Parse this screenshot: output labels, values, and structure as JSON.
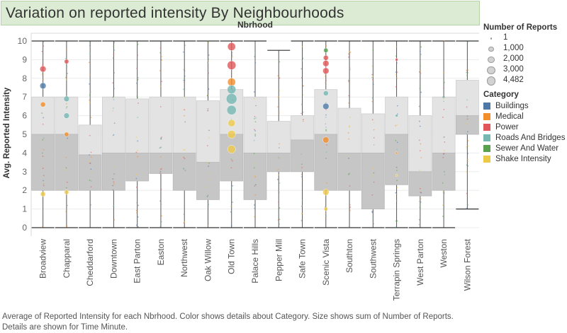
{
  "title": "Variation on reported intensity By Neighbourhoods",
  "caption": {
    "line1": "Average of Reported Intensity  for each Nbrhood.  Color shows details about Category.  Size shows sum of Number of Reports.",
    "line2": "Details are shown for Time Minute."
  },
  "legend": {
    "size_title": "Number of Reports",
    "size_items": [
      {
        "label": "1",
        "value": 1
      },
      {
        "label": "1,000",
        "value": 1000
      },
      {
        "label": "2,000",
        "value": 2000
      },
      {
        "label": "3,000",
        "value": 3000
      },
      {
        "label": "4,482",
        "value": 4482
      }
    ],
    "color_title": "Category",
    "color_items": [
      {
        "label": "Buildings",
        "color": "#4e79a7"
      },
      {
        "label": "Medical",
        "color": "#f28e2b"
      },
      {
        "label": "Power",
        "color": "#e15759"
      },
      {
        "label": "Roads And Bridges",
        "color": "#76b7b2"
      },
      {
        "label": "Sewer And Water",
        "color": "#59a14f"
      },
      {
        "label": "Shake Intensity",
        "color": "#edc948"
      }
    ]
  },
  "chart_data": {
    "type": "boxplot",
    "column_header": "Nbrhood",
    "ylabel": "Avg. Reported Intensity",
    "ylim": [
      0,
      10
    ],
    "yticks": [
      0,
      1,
      2,
      3,
      4,
      5,
      6,
      7,
      8,
      9,
      10
    ],
    "grid": true,
    "categories": [
      "Broadview",
      "Chapparal",
      "Cheddarford",
      "Downtown",
      "East Parton",
      "Easton",
      "Northwest",
      "Oak Willow",
      "Old Town",
      "Palace Hills",
      "Pepper Mill",
      "Safe Town",
      "Scenic Vista",
      "Southton",
      "Southwest",
      "Terrapin Springs",
      "West Parton",
      "Weston",
      "Wilson Forest"
    ],
    "boxes": [
      {
        "min": 0,
        "q1": 2,
        "median": 5,
        "q3": 7,
        "max": 10
      },
      {
        "min": 0,
        "q1": 2,
        "median": 5,
        "q3": 7,
        "max": 10
      },
      {
        "min": 0,
        "q1": 2,
        "median": 3.9,
        "q3": 5.5,
        "max": 10
      },
      {
        "min": 0,
        "q1": 2,
        "median": 4,
        "q3": 7,
        "max": 10
      },
      {
        "min": 0,
        "q1": 2.5,
        "median": 4,
        "q3": 6.9,
        "max": 10
      },
      {
        "min": 0,
        "q1": 2.9,
        "median": 4,
        "q3": 7,
        "max": 10
      },
      {
        "min": 0,
        "q1": 2,
        "median": 4,
        "q3": 7,
        "max": 10
      },
      {
        "min": 0,
        "q1": 1.5,
        "median": 3.5,
        "q3": 6.8,
        "max": 10
      },
      {
        "min": 0,
        "q1": 2.5,
        "median": 5,
        "q3": 7.4,
        "max": 10
      },
      {
        "min": 0,
        "q1": 1.5,
        "median": 4,
        "q3": 7,
        "max": 10
      },
      {
        "min": 0,
        "q1": 3,
        "median": 4,
        "q3": 5.7,
        "max": 9.5
      },
      {
        "min": 0,
        "q1": 3,
        "median": 4.7,
        "q3": 6,
        "max": 10
      },
      {
        "min": 0,
        "q1": 2,
        "median": 5,
        "q3": 7.4,
        "max": 10
      },
      {
        "min": 0,
        "q1": 2,
        "median": 4,
        "q3": 6.4,
        "max": 10
      },
      {
        "min": 0,
        "q1": 1,
        "median": 4,
        "q3": 6.1,
        "max": 10
      },
      {
        "min": 0,
        "q1": 2.3,
        "median": 5,
        "q3": 7,
        "max": 10
      },
      {
        "min": 0,
        "q1": 1.7,
        "median": 3,
        "q3": 6,
        "max": 10
      },
      {
        "min": 0,
        "q1": 2,
        "median": 4,
        "q3": 7,
        "max": 10
      },
      {
        "min": 1,
        "q1": 5,
        "median": 6,
        "q3": 7.9,
        "max": 10
      }
    ],
    "highlight_points": [
      {
        "nbrhood": "Broadview",
        "y": 8.5,
        "category": "Power",
        "reports": 1500
      },
      {
        "nbrhood": "Broadview",
        "y": 7.6,
        "category": "Buildings",
        "reports": 1500
      },
      {
        "nbrhood": "Broadview",
        "y": 6.6,
        "category": "Medical",
        "reports": 1000
      },
      {
        "nbrhood": "Broadview",
        "y": 1.8,
        "category": "Shake Intensity",
        "reports": 1000
      },
      {
        "nbrhood": "Chapparal",
        "y": 8.9,
        "category": "Power",
        "reports": 800
      },
      {
        "nbrhood": "Chapparal",
        "y": 6.9,
        "category": "Roads And Bridges",
        "reports": 1200
      },
      {
        "nbrhood": "Chapparal",
        "y": 6.0,
        "category": "Roads And Bridges",
        "reports": 1200
      },
      {
        "nbrhood": "Chapparal",
        "y": 5.0,
        "category": "Medical",
        "reports": 800
      },
      {
        "nbrhood": "Chapparal",
        "y": 1.9,
        "category": "Shake Intensity",
        "reports": 800
      },
      {
        "nbrhood": "Old Town",
        "y": 9.7,
        "category": "Power",
        "reports": 2500
      },
      {
        "nbrhood": "Old Town",
        "y": 8.7,
        "category": "Power",
        "reports": 3000
      },
      {
        "nbrhood": "Old Town",
        "y": 7.8,
        "category": "Medical",
        "reports": 2500
      },
      {
        "nbrhood": "Old Town",
        "y": 7.4,
        "category": "Roads And Bridges",
        "reports": 3000
      },
      {
        "nbrhood": "Old Town",
        "y": 6.9,
        "category": "Roads And Bridges",
        "reports": 4482
      },
      {
        "nbrhood": "Old Town",
        "y": 6.3,
        "category": "Roads And Bridges",
        "reports": 3500
      },
      {
        "nbrhood": "Old Town",
        "y": 5.6,
        "category": "Shake Intensity",
        "reports": 2000
      },
      {
        "nbrhood": "Old Town",
        "y": 5.0,
        "category": "Shake Intensity",
        "reports": 2500
      },
      {
        "nbrhood": "Old Town",
        "y": 4.2,
        "category": "Shake Intensity",
        "reports": 2500
      },
      {
        "nbrhood": "Scenic Vista",
        "y": 9.5,
        "category": "Sewer And Water",
        "reports": 800
      },
      {
        "nbrhood": "Scenic Vista",
        "y": 9.1,
        "category": "Power",
        "reports": 1000
      },
      {
        "nbrhood": "Scenic Vista",
        "y": 8.8,
        "category": "Power",
        "reports": 1500
      },
      {
        "nbrhood": "Scenic Vista",
        "y": 8.4,
        "category": "Power",
        "reports": 1500
      },
      {
        "nbrhood": "Scenic Vista",
        "y": 7.2,
        "category": "Roads And Bridges",
        "reports": 1000
      },
      {
        "nbrhood": "Scenic Vista",
        "y": 6.5,
        "category": "Buildings",
        "reports": 1500
      },
      {
        "nbrhood": "Scenic Vista",
        "y": 4.7,
        "category": "Medical",
        "reports": 1500
      },
      {
        "nbrhood": "Scenic Vista",
        "y": 1.9,
        "category": "Shake Intensity",
        "reports": 1500
      },
      {
        "nbrhood": "Scenic Vista",
        "y": 1.0,
        "category": "Shake Intensity",
        "reports": 600
      },
      {
        "nbrhood": "Terrapin Springs",
        "y": 9.0,
        "category": "Power",
        "reports": 300
      },
      {
        "nbrhood": "Terrapin Springs",
        "y": 6.0,
        "category": "Roads And Bridges",
        "reports": 300
      },
      {
        "nbrhood": "Terrapin Springs",
        "y": 4.0,
        "category": "Medical",
        "reports": 200
      },
      {
        "nbrhood": "Terrapin Springs",
        "y": 2.8,
        "category": "Shake Intensity",
        "reports": 200
      }
    ]
  }
}
